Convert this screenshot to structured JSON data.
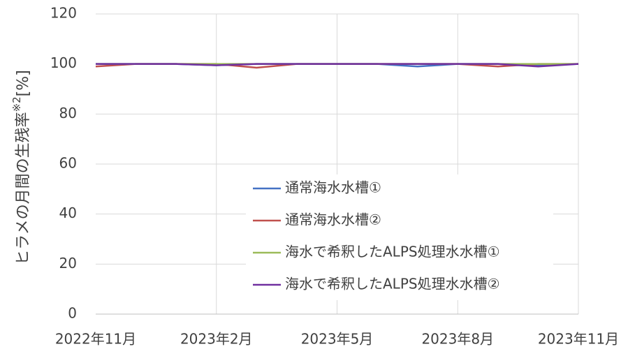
{
  "chart_data": {
    "type": "line",
    "ylabel": "ヒラメの月間の生残率",
    "ylabel_note": "※2",
    "ylabel_unit": "[%]",
    "categories": [
      "2022年11月",
      null,
      null,
      "2023年2月",
      null,
      null,
      "2023年5月",
      null,
      null,
      "2023年8月",
      null,
      null,
      "2023年11月"
    ],
    "series": [
      {
        "name": "通常海水水槽①",
        "color": "#4472c4",
        "values": [
          100,
          100,
          100,
          99.5,
          100,
          100,
          100,
          100,
          99,
          100,
          100,
          99.5,
          100
        ]
      },
      {
        "name": "通常海水水槽②",
        "color": "#c0504d",
        "values": [
          99,
          100,
          100,
          100,
          98.5,
          100,
          100,
          100,
          100,
          100,
          99,
          100,
          100
        ]
      },
      {
        "name": "海水で希釈したALPS処理水水槽①",
        "color": "#9bbb59",
        "values": [
          100,
          100,
          100,
          100,
          100,
          100,
          100,
          100,
          100,
          100,
          100,
          100,
          100
        ]
      },
      {
        "name": "海水で希釈したALPS処理水水槽②",
        "color": "#7030a0",
        "values": [
          100,
          100,
          100,
          99.5,
          100,
          100,
          100,
          100,
          100,
          100,
          100,
          99,
          100
        ]
      }
    ],
    "ylim": [
      0,
      120
    ],
    "yticks": [
      0,
      20,
      40,
      60,
      80,
      100,
      120
    ],
    "grid": true
  }
}
